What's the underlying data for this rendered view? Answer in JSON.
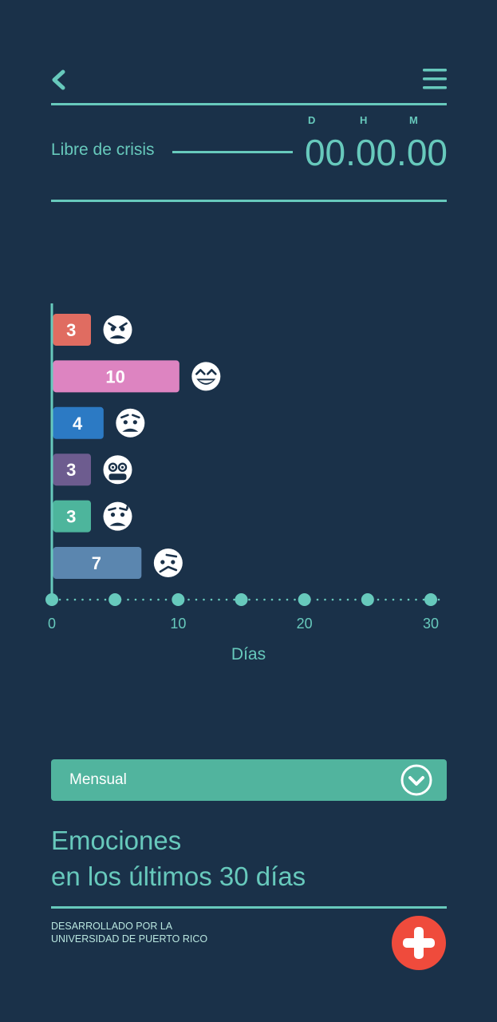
{
  "header": {
    "back_icon": "chevron-left-icon",
    "menu_icon": "hamburger-menu-icon"
  },
  "timer": {
    "label": "Libre de crisis",
    "units": [
      "D",
      "H",
      "M"
    ],
    "value": "00.00.00"
  },
  "chart_data": {
    "type": "bar",
    "orientation": "horizontal",
    "categories": [
      "angry-face",
      "laughing-face",
      "worried-face",
      "grimacing-face",
      "anxious-face",
      "confused-face"
    ],
    "values": [
      3,
      10,
      4,
      3,
      3,
      7
    ],
    "colors": [
      "#e06c61",
      "#dd84c1",
      "#2c7ac4",
      "#6d5c8f",
      "#4db59c",
      "#5b86af"
    ],
    "xlabel": "Días",
    "xlim": [
      0,
      30
    ],
    "x_ticks": [
      0,
      10,
      20,
      30
    ],
    "x_dots": [
      0,
      5,
      10,
      15,
      20,
      25,
      30
    ]
  },
  "filter": {
    "selected": "Mensual",
    "icon": "chevron-down-circle-icon"
  },
  "title": {
    "line1": "Emociones",
    "line2": "en los últimos 30 días"
  },
  "footer": {
    "line1": "DESARROLLADO POR LA",
    "line2": "UNIVERSIDAD DE PUERTO RICO",
    "add_icon": "plus-icon"
  },
  "colors": {
    "background": "#1a3149",
    "accent": "#67c9bc",
    "select": "#51b49e",
    "add_button": "#ef4b3c"
  }
}
